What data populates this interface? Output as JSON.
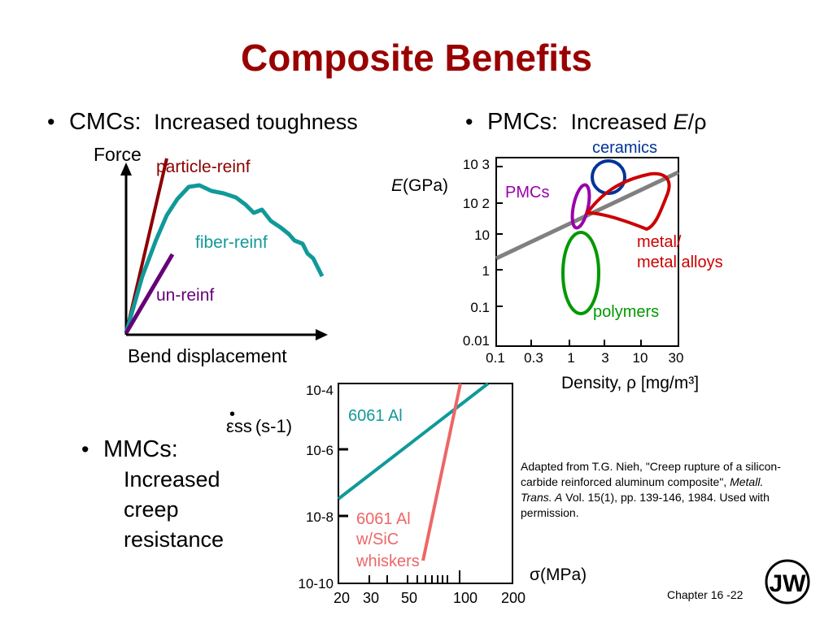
{
  "title": "Composite Benefits",
  "cmc": {
    "bullet": "•",
    "label": "CMCs:",
    "desc": "Increased toughness",
    "y_axis": "Force",
    "x_axis": "Bend displacement",
    "curves": [
      {
        "name": "particle-reinf",
        "color": "#8b0000"
      },
      {
        "name": "fiber-reinf",
        "color": "#119999"
      },
      {
        "name": "un-reinf",
        "color": "#660077"
      }
    ]
  },
  "pmc": {
    "bullet": "•",
    "label": "PMCs:",
    "desc_prefix": "Increased ",
    "desc_italic": "E",
    "desc_suffix": "/ρ",
    "y_label_italic": "E",
    "y_label": "(GPa)",
    "y_ticks": [
      "0.01",
      "0.1",
      "1",
      "10",
      "10 2",
      "10 3"
    ],
    "x_ticks": [
      "0.1",
      "0.3",
      "1",
      "3",
      "10",
      "30"
    ],
    "x_label": "Density, ρ [mg/m³]",
    "regions": [
      {
        "name": "ceramics",
        "color": "#003399"
      },
      {
        "name": "PMCs",
        "color": "#9900aa"
      },
      {
        "name": "metal/",
        "name2": "metal alloys",
        "color": "#cc0000"
      },
      {
        "name": "polymers",
        "color": "#009900"
      }
    ]
  },
  "mmc": {
    "bullet": "•",
    "label": "MMCs:",
    "desc": "Increased creep resistance",
    "y_label_sym": "ε",
    "y_label_sub": "ss",
    "y_label_units": "(s-1)",
    "y_ticks": [
      "10-4",
      "10-6",
      "10-8",
      "10-10"
    ],
    "x_ticks": [
      "20",
      "30",
      "50",
      "100",
      "200"
    ],
    "x_label": "σ(MPa)",
    "lines": [
      {
        "name": "6061 Al",
        "color": "#119999"
      },
      {
        "name": "6061 Al",
        "name2": "w/SiC",
        "name3": "whiskers",
        "color": "#ee6666"
      }
    ]
  },
  "credit": {
    "text_a": "Adapted from T.G. Nieh, \"Creep rupture of a silicon-carbide reinforced aluminum composite\", ",
    "text_italic": "Metall. Trans. A",
    "text_b": " Vol. 15(1), pp. 139-146, 1984.  Used with permission."
  },
  "chapter": "Chapter 16 -22",
  "logo": "JW"
}
